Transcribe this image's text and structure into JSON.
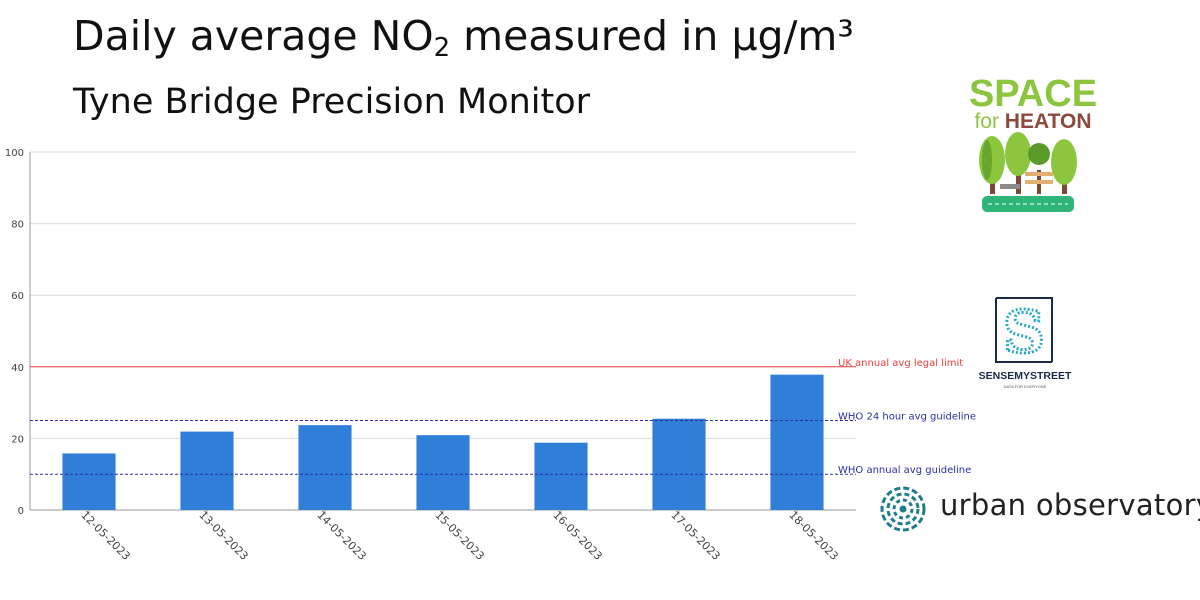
{
  "title": {
    "prefix": "Daily average NO",
    "subscript": "2",
    "suffix": " measured in µg/m³"
  },
  "subtitle": "Tyne Bridge Precision Monitor",
  "chart_data": {
    "type": "bar",
    "categories": [
      "12-05-2023",
      "13-05-2023",
      "14-05-2023",
      "15-05-2023",
      "16-05-2023",
      "17-05-2023",
      "18-05-2023"
    ],
    "values": [
      15.8,
      21.9,
      23.7,
      20.9,
      18.8,
      25.5,
      37.8
    ],
    "ylim": [
      0,
      100
    ],
    "yticks": [
      0,
      20,
      40,
      60,
      80,
      100
    ],
    "grid": true,
    "bar_color": "#2f7fd9",
    "reference_lines": [
      {
        "label": "UK annual avg legal limit",
        "value": 40,
        "style": "solid",
        "color": "#e8423f"
      },
      {
        "label": "WHO 24 hour avg guideline",
        "value": 25,
        "style": "dashed",
        "color": "#2b2fa6"
      },
      {
        "label": "WHO annual avg guideline",
        "value": 10,
        "style": "dashed",
        "color": "#2b2fa6"
      }
    ]
  },
  "logos": {
    "space_for_heaton": {
      "line1": "SPACE",
      "line2a": "for ",
      "line2b": "HEATON"
    },
    "sense_my_street": {
      "name": "SENSEMYSTREET",
      "tagline": "DATA FOR EVERYONE",
      "letter": "S"
    },
    "urban_observatory": {
      "name": "urban observatory"
    }
  },
  "colors": {
    "space_green": "#8cc63f",
    "heaton_brown": "#8b4a3c",
    "smst_teal": "#2aa8c4",
    "uo_teal": "#1e7d8a"
  }
}
